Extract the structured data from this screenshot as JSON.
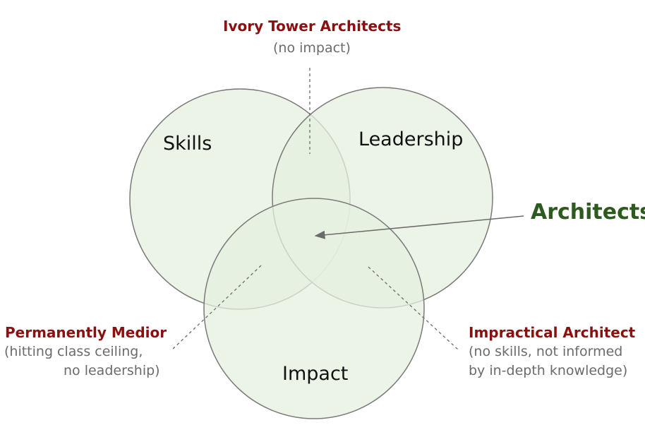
{
  "colors": {
    "circle_fill": "#e6f0e0",
    "circle_stroke": "#7a7a7a",
    "title_red": "#8b1010",
    "architects_green": "#2d5a1e",
    "subtitle_gray": "#6b6b6b",
    "connector": "#6b6b6b"
  },
  "circles": {
    "skills": "Skills",
    "leadership": "Leadership",
    "impact": "Impact"
  },
  "center_label": "Architects",
  "callouts": {
    "ivory_tower": {
      "title": "Ivory Tower Architects",
      "desc": "(no impact)"
    },
    "medior": {
      "title": "Permanently Medior",
      "desc_line1": "(hitting class ceiling,",
      "desc_line2": "no leadership)"
    },
    "impractical": {
      "title": "Impractical Architect",
      "desc_line1": "(no skills, not informed",
      "desc_line2": "by in-depth knowledge)"
    }
  }
}
